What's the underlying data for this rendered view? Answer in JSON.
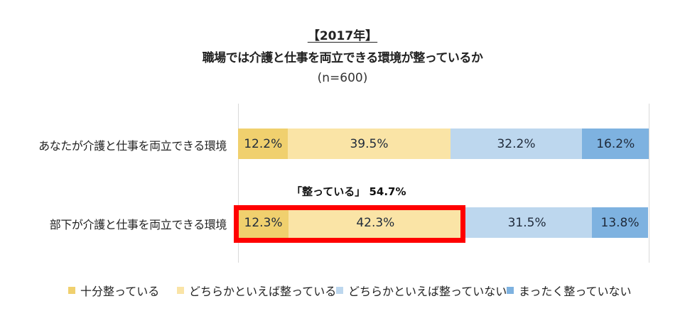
{
  "title": {
    "year": "【2017年】",
    "main": "職場では介護と仕事を両立できる環境が整っているか",
    "sample": "(n=600)"
  },
  "colors": {
    "fully": "#F0D06E",
    "somewhat": "#FAE4A6",
    "somewhat_not": "#BDD7EE",
    "not_at_all": "#7EB2E0",
    "highlight": "#FF0000"
  },
  "annotation": "「整っている」 54.7%",
  "rows": [
    {
      "label": "あなたが介護と仕事を両立できる環境",
      "values": [
        "12.2%",
        "39.5%",
        "32.2%",
        "16.2%"
      ]
    },
    {
      "label": "部下が介護と仕事を両立できる環境",
      "values": [
        "12.3%",
        "42.3%",
        "31.5%",
        "13.8%"
      ]
    }
  ],
  "legend": [
    "十分整っている",
    "どちらかといえば整っている",
    "どちらかといえば整っていない",
    "まったく整っていない"
  ],
  "chart_data": {
    "type": "bar",
    "orientation": "horizontal",
    "stacked": "100%",
    "title": "【2017年】 職場では介護と仕事を両立できる環境が整っているか",
    "subtitle": "(n=600)",
    "categories": [
      "あなたが介護と仕事を両立できる環境",
      "部下が介護と仕事を両立できる環境"
    ],
    "series": [
      {
        "name": "十分整っている",
        "values": [
          12.2,
          12.3
        ],
        "color": "#F0D06E"
      },
      {
        "name": "どちらかといえば整っている",
        "values": [
          39.5,
          42.3
        ],
        "color": "#FAE4A6"
      },
      {
        "name": "どちらかといえば整っていない",
        "values": [
          32.2,
          31.5
        ],
        "color": "#BDD7EE"
      },
      {
        "name": "まったく整っていない",
        "values": [
          16.2,
          13.8
        ],
        "color": "#7EB2E0"
      }
    ],
    "annotations": [
      {
        "text": "「整っている」 54.7%",
        "target": "部下が介護と仕事を両立できる環境",
        "series": [
          "十分整っている",
          "どちらかといえば整っている"
        ],
        "highlight": "red box"
      }
    ],
    "xlabel": "",
    "ylabel": "",
    "xlim": [
      0,
      100
    ],
    "grid": false,
    "legend_position": "bottom"
  }
}
